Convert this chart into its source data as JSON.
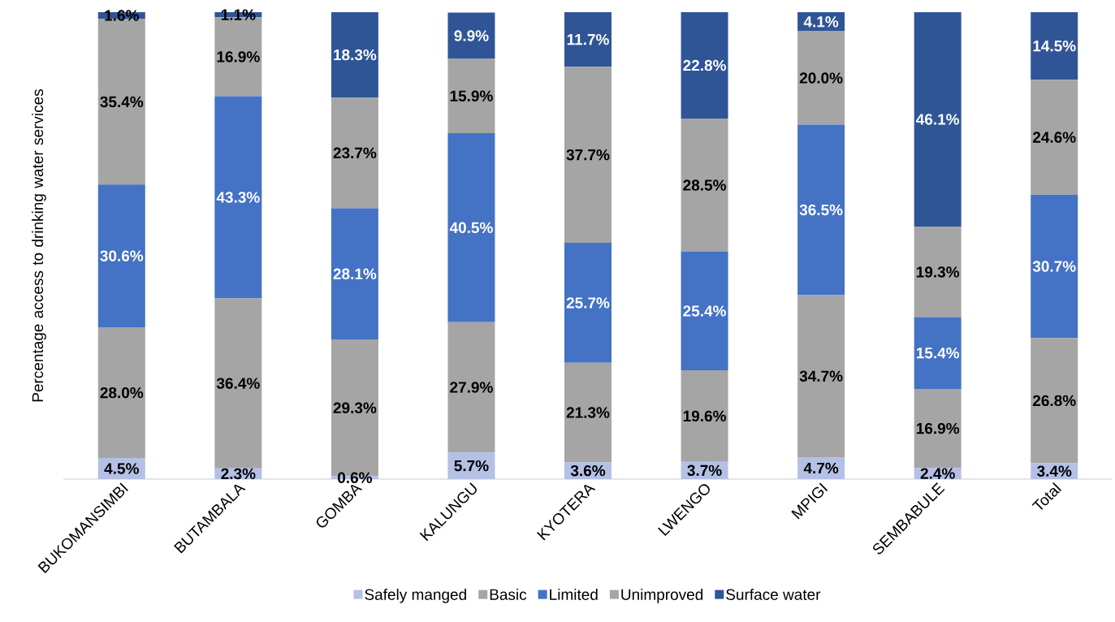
{
  "chart_data": {
    "type": "bar",
    "stacked": true,
    "ylabel": "Percentage access to drinking water services",
    "ylim": [
      0,
      100
    ],
    "legend": "bottom",
    "categories": [
      "BUKOMANSIMBI",
      "BUTAMBALA",
      "GOMBA",
      "KALUNGU",
      "KYOTERA",
      "LWENGO",
      "MPIGI",
      "SEMBABULE",
      "Total"
    ],
    "series": [
      {
        "name": "Safely manged",
        "color": "#b4c0e4",
        "values": [
          4.5,
          2.3,
          0.6,
          5.7,
          3.6,
          3.7,
          4.7,
          2.4,
          3.4
        ],
        "value_labels": [
          "4.5%",
          "2.3%",
          "0.6%",
          "5.7%",
          "3.6%",
          "3.7%",
          "4.7%",
          "2.4%",
          "3.4%"
        ]
      },
      {
        "name": "Basic",
        "color": "#a5a5a5",
        "values": [
          28.0,
          36.4,
          29.3,
          27.9,
          21.3,
          19.6,
          34.7,
          16.9,
          26.8
        ],
        "value_labels": [
          "28.0%",
          "36.4%",
          "29.3%",
          "27.9%",
          "21.3%",
          "19.6%",
          "34.7%",
          "16.9%",
          "26.8%"
        ]
      },
      {
        "name": "Limited",
        "color": "#4472c4",
        "values": [
          30.6,
          43.3,
          28.1,
          40.5,
          25.7,
          25.4,
          36.5,
          15.4,
          30.7
        ],
        "value_labels": [
          "30.6%",
          "43.3%",
          "28.1%",
          "40.5%",
          "25.7%",
          "25.4%",
          "36.5%",
          "15.4%",
          "30.7%"
        ]
      },
      {
        "name": "Unimproved",
        "color": "#a5a5a5",
        "values": [
          35.4,
          16.9,
          23.7,
          15.9,
          37.7,
          28.5,
          20.0,
          19.3,
          24.6
        ],
        "value_labels": [
          "35.4%",
          "16.9%",
          "23.7%",
          "15.9%",
          "37.7%",
          "28.5%",
          "20.0%",
          "19.3%",
          "24.6%"
        ]
      },
      {
        "name": "Surface water",
        "color": "#2f5597",
        "values": [
          1.6,
          1.1,
          18.3,
          9.9,
          11.7,
          22.8,
          4.1,
          46.1,
          14.5
        ],
        "value_labels": [
          "1.6%",
          "1.1%",
          "18.3%",
          "9.9%",
          "11.7%",
          "22.8%",
          "4.1%",
          "46.1%",
          "14.5%"
        ]
      }
    ]
  }
}
